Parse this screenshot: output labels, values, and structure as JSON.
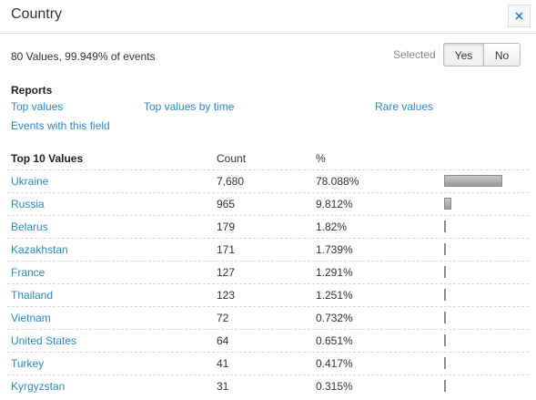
{
  "header": {
    "title": "Country"
  },
  "summary": "80 Values, 99.949% of events",
  "selected": {
    "label": "Selected",
    "options": [
      "Yes",
      "No"
    ]
  },
  "reports": {
    "title": "Reports",
    "links": [
      "Top values",
      "Top values by time",
      "Rare values",
      "Events with this field"
    ]
  },
  "table": {
    "columns": [
      "Top 10 Values",
      "Count",
      "%"
    ],
    "rows": [
      {
        "value": "Ukraine",
        "count": "7,680",
        "percent": {
          "value": 78.088,
          "label": "78.088%"
        }
      },
      {
        "value": "Russia",
        "count": "965",
        "percent": {
          "value": 9.812,
          "label": "9.812%"
        }
      },
      {
        "value": "Belarus",
        "count": "179",
        "percent": {
          "value": 1.82,
          "label": "1.82%"
        }
      },
      {
        "value": "Kazakhstan",
        "count": "171",
        "percent": {
          "value": 1.739,
          "label": "1.739%"
        }
      },
      {
        "value": "France",
        "count": "127",
        "percent": {
          "value": 1.291,
          "label": "1.291%"
        }
      },
      {
        "value": "Thailand",
        "count": "123",
        "percent": {
          "value": 1.251,
          "label": "1.251%"
        }
      },
      {
        "value": "Vietnam",
        "count": "72",
        "percent": {
          "value": 0.732,
          "label": "0.732%"
        }
      },
      {
        "value": "United States",
        "count": "64",
        "percent": {
          "value": 0.651,
          "label": "0.651%"
        }
      },
      {
        "value": "Turkey",
        "count": "41",
        "percent": {
          "value": 0.417,
          "label": "0.417%"
        }
      },
      {
        "value": "Kyrgyzstan",
        "count": "31",
        "percent": {
          "value": 0.315,
          "label": "0.315%"
        }
      }
    ]
  }
}
